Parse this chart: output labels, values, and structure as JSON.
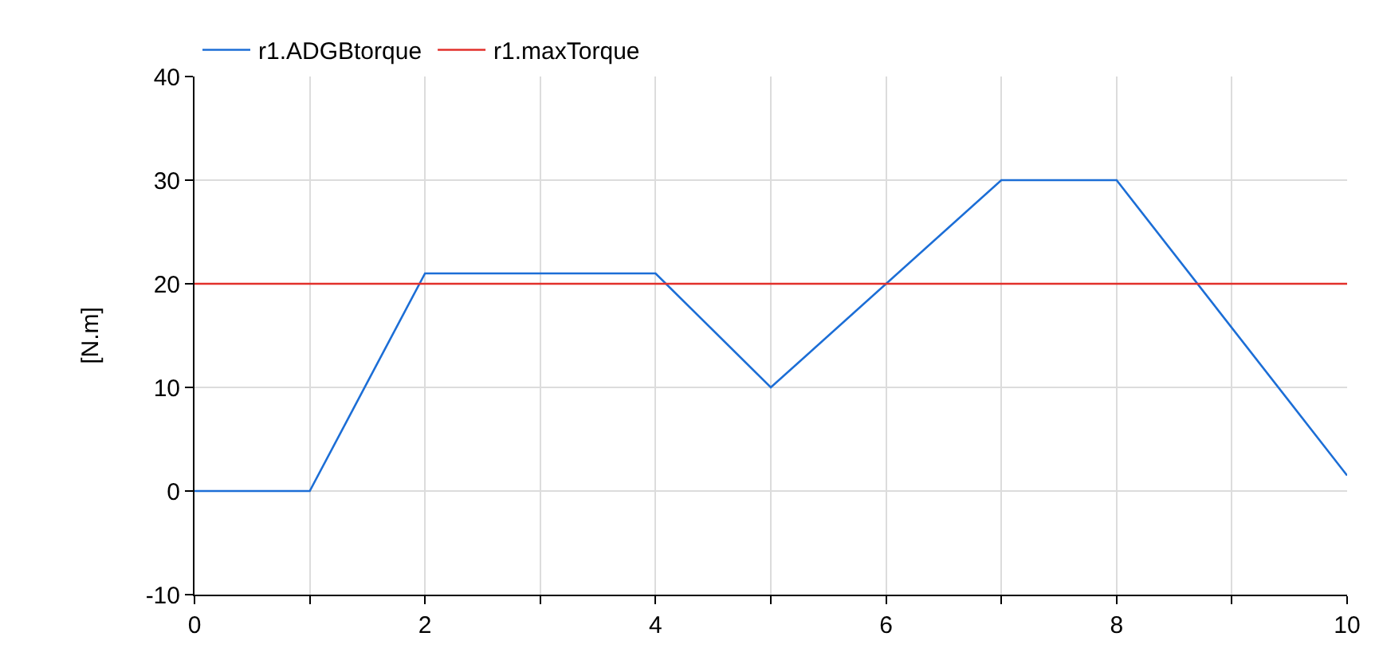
{
  "chart_data": {
    "type": "line",
    "ylabel": "[N.m]",
    "x": [
      0,
      1,
      2,
      4,
      5,
      7,
      8,
      10
    ],
    "series": [
      {
        "name": "r1.ADGBtorque",
        "color": "#1c6ed6",
        "values": [
          0,
          0,
          21,
          21,
          10,
          30,
          30,
          1.5
        ]
      },
      {
        "name": "r1.maxTorque",
        "color": "#e2302b",
        "x": [
          0,
          10
        ],
        "values": [
          20,
          20
        ]
      }
    ],
    "xlim": [
      0,
      10
    ],
    "xticks": [
      0,
      {
        "value": 1,
        "label": null
      },
      2,
      {
        "value": 3,
        "label": null
      },
      4,
      {
        "value": 5,
        "label": null
      },
      6,
      {
        "value": 7,
        "label": null
      },
      8,
      {
        "value": 9,
        "label": null
      },
      10
    ],
    "ylim": [
      -10,
      40
    ],
    "yticks": [
      -10,
      0,
      10,
      20,
      30,
      40
    ],
    "grid": true,
    "legend": "top left",
    "marker": "none",
    "line_style": "solid"
  }
}
